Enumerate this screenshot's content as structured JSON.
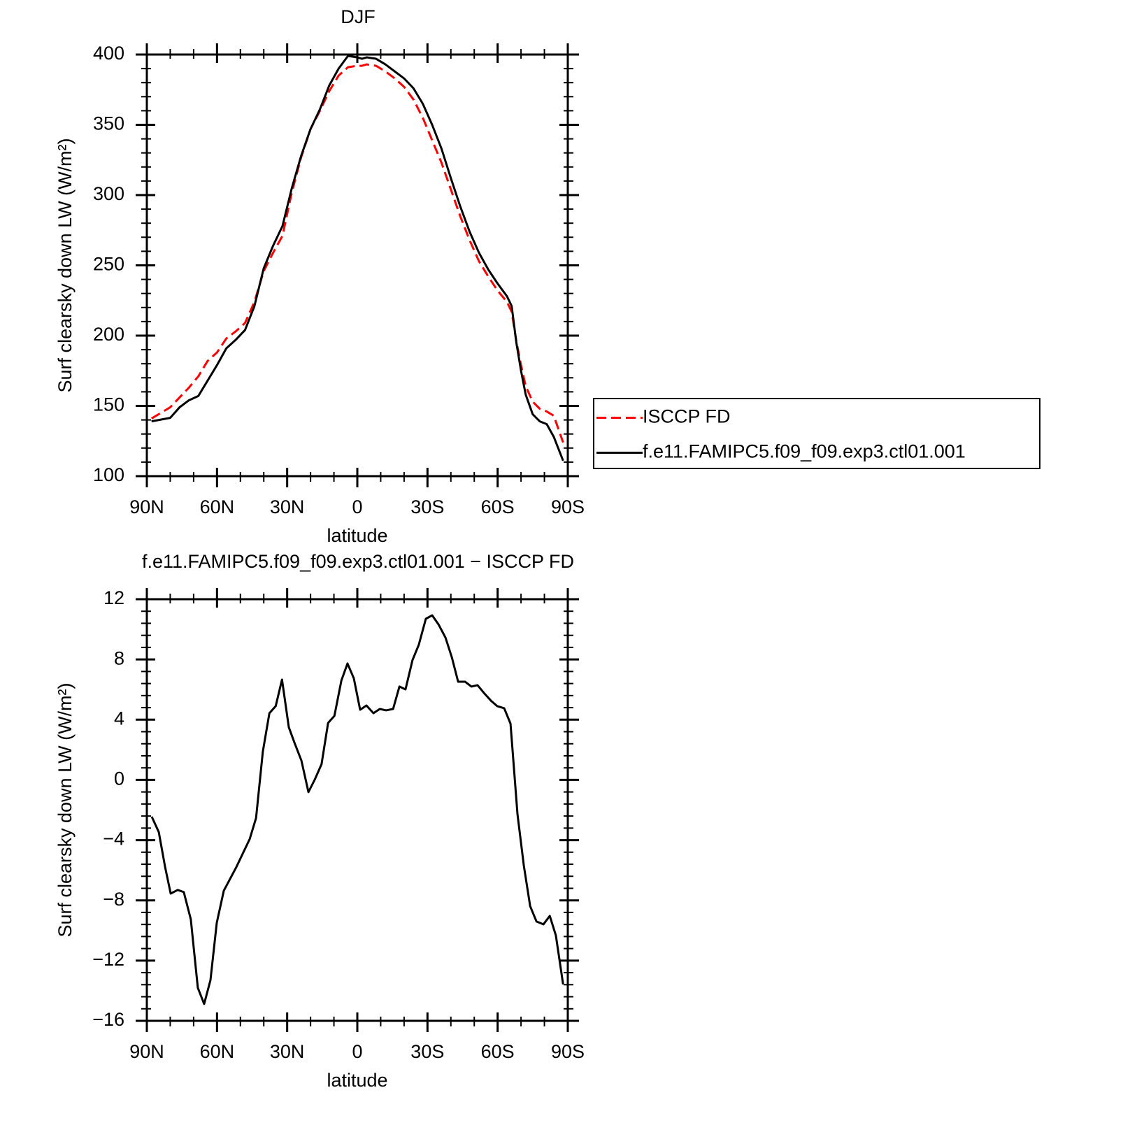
{
  "chart_data": [
    {
      "type": "line",
      "title": "DJF",
      "xlabel": "latitude",
      "ylabel": "Surf clearsky down LW (W/m²)",
      "x": [
        88,
        80,
        76,
        72,
        68,
        64,
        60,
        56,
        52,
        48,
        44,
        40,
        36,
        32,
        28,
        24,
        20,
        16,
        12,
        8,
        4,
        0,
        -2,
        -4,
        -8,
        -12,
        -16,
        -20,
        -24,
        -28,
        -32,
        -36,
        -40,
        -44,
        -48,
        -52,
        -56,
        -60,
        -64,
        -66,
        -68,
        -70,
        -72,
        -75,
        -78,
        -81,
        -84,
        -88
      ],
      "series": [
        {
          "name": "ISCCP FD",
          "color": "#ff0000",
          "dash": true,
          "values": [
            141,
            149,
            156,
            163,
            171,
            182,
            188,
            198,
            203,
            209,
            224,
            246,
            259,
            271,
            302,
            327,
            347,
            360,
            374,
            385,
            391,
            392,
            392,
            393,
            392,
            388,
            383,
            377,
            368,
            355,
            339,
            323,
            304,
            285,
            268,
            253,
            242,
            232,
            224,
            217,
            196,
            179,
            164,
            153,
            148,
            146,
            143,
            124
          ]
        },
        {
          "name": "f.e11.FAMIPC5.f09_f09.exp3.ctl01.001",
          "color": "#000000",
          "dash": false,
          "values": [
            139,
            141.5,
            149,
            154,
            157,
            168,
            179,
            191,
            197,
            204,
            221,
            248,
            264,
            278,
            305,
            328,
            347,
            361,
            378,
            390,
            399,
            398,
            397,
            398,
            397,
            393,
            388,
            383,
            376,
            365,
            350,
            333,
            312,
            292,
            274,
            259,
            247,
            237,
            228,
            221,
            195,
            175,
            158,
            144,
            139,
            137,
            128,
            111
          ]
        }
      ],
      "xlim": [
        90,
        -90
      ],
      "xticks": [
        {
          "value": 90,
          "label": "90N"
        },
        {
          "value": 60,
          "label": "60N"
        },
        {
          "value": 30,
          "label": "30N"
        },
        0,
        {
          "value": -30,
          "label": "30S"
        },
        {
          "value": -60,
          "label": "60S"
        },
        {
          "value": -90,
          "label": "90S"
        }
      ],
      "ylim": [
        100,
        400
      ],
      "yticks": [
        100,
        150,
        200,
        250,
        300,
        350,
        400
      ],
      "legend": "right"
    },
    {
      "type": "line",
      "title": "f.e11.FAMIPC5.f09_f09.exp3.ctl01.001 − ISCCP FD",
      "xlabel": "latitude",
      "ylabel": "Surf clearsky down LW (W/m²)",
      "x": [
        87.9,
        84.9,
        82.2,
        79.8,
        76.8,
        74.2,
        71.2,
        68.2,
        65.5,
        62.8,
        60.1,
        57.1,
        51.7,
        46.0,
        43.3,
        40.4,
        37.6,
        34.9,
        32.2,
        29.3,
        26.9,
        23.9,
        20.9,
        18.2,
        15.3,
        12.5,
        9.8,
        6.8,
        4.2,
        1.5,
        -1.2,
        -3.9,
        -6.9,
        -9.6,
        -12.3,
        -15.3,
        -18.0,
        -20.6,
        -23.6,
        -26.3,
        -29.3,
        -32.0,
        -34.7,
        -37.7,
        -40.4,
        -43.1,
        -46.1,
        -48.8,
        -51.4,
        -54.4,
        -57.1,
        -59.8,
        -62.8,
        -65.5,
        -68.5,
        -71.2,
        -73.9,
        -76.6,
        -79.6,
        -82.3,
        -84.9,
        -88.0
      ],
      "series": [
        {
          "color": "#000000",
          "dash": false,
          "values": [
            -2.44,
            -3.46,
            -5.78,
            -7.55,
            -7.31,
            -7.45,
            -9.26,
            -13.81,
            -14.88,
            -13.3,
            -9.49,
            -7.36,
            -5.78,
            -3.92,
            -2.53,
            1.88,
            4.43,
            4.9,
            6.66,
            3.5,
            2.48,
            1.28,
            -0.81,
            0.02,
            1.04,
            3.78,
            4.25,
            6.61,
            7.73,
            6.75,
            4.66,
            4.94,
            4.43,
            4.71,
            4.62,
            4.71,
            6.2,
            6.01,
            7.96,
            8.98,
            10.7,
            10.93,
            10.33,
            9.45,
            8.15,
            6.52,
            6.52,
            6.2,
            6.29,
            5.73,
            5.27,
            4.9,
            4.76,
            3.74,
            -2.3,
            -5.69,
            -8.38,
            -9.4,
            -9.59,
            -9.03,
            -10.33,
            -13.58
          ]
        }
      ],
      "xlim": [
        90,
        -90
      ],
      "xticks": [
        {
          "value": 90,
          "label": "90N"
        },
        {
          "value": 60,
          "label": "60N"
        },
        {
          "value": 30,
          "label": "30N"
        },
        0,
        {
          "value": -30,
          "label": "30S"
        },
        {
          "value": -60,
          "label": "60S"
        },
        {
          "value": -90,
          "label": "90S"
        }
      ],
      "ylim": [
        -16,
        12
      ],
      "yticks": [
        {
          "value": -16,
          "label": "−16"
        },
        {
          "value": -12,
          "label": "−12"
        },
        {
          "value": -8,
          "label": "−8"
        },
        {
          "value": -4,
          "label": "−4"
        },
        0,
        4,
        8,
        12
      ]
    }
  ]
}
